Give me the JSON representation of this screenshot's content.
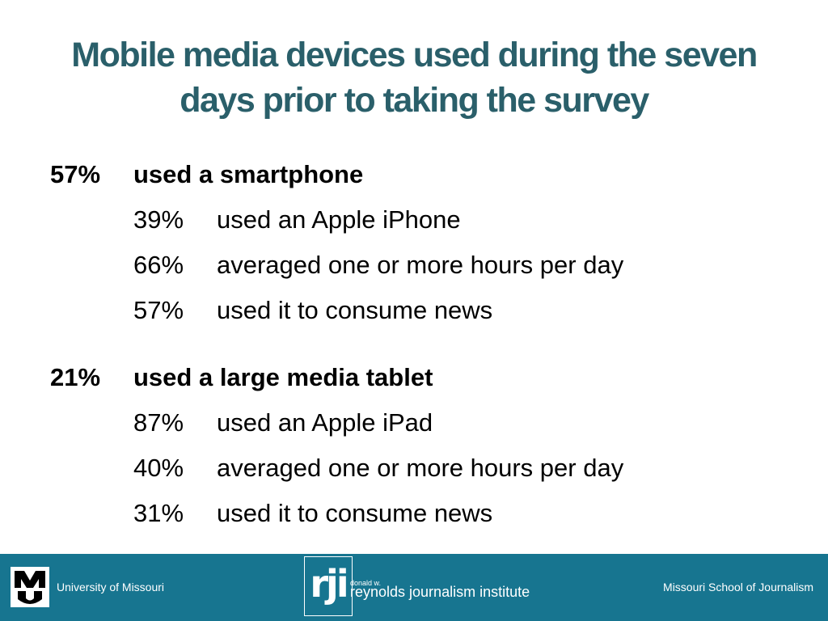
{
  "title": "Mobile media devices used during the seven days prior to taking the survey",
  "sections": [
    {
      "pct": "57%",
      "label": "used a smartphone",
      "items": [
        {
          "pct": "39%",
          "label": "used an Apple iPhone"
        },
        {
          "pct": "66%",
          "label": "averaged one or more hours per day"
        },
        {
          "pct": "57%",
          "label": "used it to consume news"
        }
      ]
    },
    {
      "pct": "21%",
      "label": "used a large media tablet",
      "items": [
        {
          "pct": "87%",
          "label": "used an Apple iPad"
        },
        {
          "pct": "40%",
          "label": "averaged one or more hours per day"
        },
        {
          "pct": "31%",
          "label": "used it to consume news"
        }
      ]
    }
  ],
  "footer": {
    "left": "University of Missouri",
    "right": "Missouri School of Journalism",
    "rji_logo": "rji",
    "rji_small": "donald w.",
    "rji_name": "reynolds journalism institute",
    "mu_logo_icon": "mu-logo-icon",
    "background": "#177590"
  }
}
